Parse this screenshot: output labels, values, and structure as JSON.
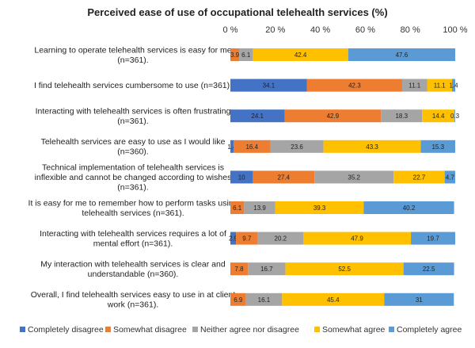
{
  "chart_data": {
    "type": "bar",
    "orientation": "horizontal",
    "stacked": true,
    "title": "Perceived ease of use of occupational telehealth services (%)",
    "xlim": [
      0,
      100
    ],
    "x_ticks": [
      "0 %",
      "20 %",
      "40 %",
      "60 %",
      "80 %",
      "100 %"
    ],
    "grid": false,
    "legend_position": "bottom",
    "categories": [
      [
        "Learning to operate telehealth services is easy for me",
        "(n=361)."
      ],
      [
        "I find telehealth services cumbersome to use (n=361)."
      ],
      [
        "Interacting with telehealth services is often frustrating",
        "(n=361)."
      ],
      [
        "Telehealth services are easy to use as I would like",
        "(n=360)."
      ],
      [
        "Technical implementation of telehealth services is",
        "inflexible and cannot be changed according to wishes",
        "(n=361)."
      ],
      [
        "It is easy for me to remember how to perform tasks using",
        "telehealth services (n=361)."
      ],
      [
        "Interacting with telehealth services requires a lot of",
        "mental effort (n=361)."
      ],
      [
        "My interaction with telehealth services is clear and",
        "understandable (n=360)."
      ],
      [
        "Overall, I find telehealth services easy to use in at client",
        "work (n=361)."
      ]
    ],
    "series": [
      {
        "name": "Completely disagree",
        "color": "#4472C4",
        "values": [
          0,
          34.1,
          24.1,
          1.4,
          10,
          0,
          2.5,
          0,
          0
        ],
        "labels": [
          "",
          "34.1",
          "24.1",
          "1.4",
          "10",
          "",
          "2.5",
          "",
          ""
        ]
      },
      {
        "name": "Somewhat disagree",
        "color": "#ED7D31",
        "values": [
          3.9,
          42.3,
          42.9,
          16.4,
          27.4,
          6.1,
          9.7,
          7.8,
          6.9
        ],
        "labels": [
          "3.9",
          "42.3",
          "42.9",
          "16.4",
          "27.4",
          "6.1",
          "9.7",
          "7.8",
          "6.9"
        ]
      },
      {
        "name": "Neither agree nor disagree",
        "color": "#A5A5A5",
        "values": [
          6.1,
          11.1,
          18.3,
          23.6,
          35.2,
          13.9,
          20.2,
          16.7,
          16.1
        ],
        "labels": [
          "6.1",
          "11.1",
          "18.3",
          "23.6",
          "35.2",
          "13.9",
          "20.2",
          "16.7",
          "16.1"
        ]
      },
      {
        "name": "Somewhat agree",
        "color": "#FFC000",
        "values": [
          42.4,
          11.1,
          14.4,
          43.3,
          22.7,
          39.3,
          47.9,
          52.5,
          45.4
        ],
        "labels": [
          "42.4",
          "11.1",
          "14.4",
          "43.3",
          "22.7",
          "39.3",
          "47.9",
          "52.5",
          "45.4"
        ]
      },
      {
        "name": "Completely agree",
        "color": "#5B9BD5",
        "values": [
          47.6,
          1.4,
          0.3,
          15.3,
          4.7,
          40.2,
          19.7,
          22.5,
          31
        ],
        "labels": [
          "47.6",
          "1.4",
          "0.3",
          "15.3",
          "4.7",
          "40.2",
          "19.7",
          "22.5",
          "31"
        ]
      }
    ]
  }
}
